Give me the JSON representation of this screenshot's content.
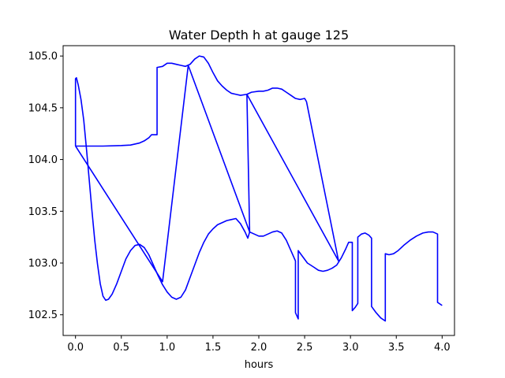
{
  "chart_data": {
    "type": "line",
    "title": "Water Depth h at gauge 125",
    "xlabel": "hours",
    "ylabel": "",
    "xlim": [
      -0.135,
      4.135
    ],
    "ylim": [
      102.3,
      105.1
    ],
    "xticks": [
      0.0,
      0.5,
      1.0,
      1.5,
      2.0,
      2.5,
      3.0,
      3.5,
      4.0
    ],
    "xtick_labels": [
      "0.0",
      "0.5",
      "1.0",
      "1.5",
      "2.0",
      "2.5",
      "3.0",
      "3.5",
      "4.0"
    ],
    "yticks": [
      102.5,
      103.0,
      103.5,
      104.0,
      104.5,
      105.0
    ],
    "ytick_labels": [
      "102.5",
      "103.0",
      "103.5",
      "104.0",
      "104.5",
      "105.0"
    ],
    "grid": false,
    "color": "#0000ff",
    "series": [
      {
        "values": [
          [
            0.0,
            104.13
          ],
          [
            0.0,
            104.78
          ],
          [
            0.01,
            104.79
          ],
          [
            0.03,
            104.72
          ],
          [
            0.06,
            104.58
          ],
          [
            0.09,
            104.38
          ],
          [
            0.12,
            104.1
          ],
          [
            0.15,
            103.8
          ],
          [
            0.18,
            103.5
          ],
          [
            0.21,
            103.22
          ],
          [
            0.24,
            102.99
          ],
          [
            0.27,
            102.8
          ],
          [
            0.3,
            102.68
          ],
          [
            0.33,
            102.64
          ],
          [
            0.36,
            102.65
          ],
          [
            0.4,
            102.7
          ],
          [
            0.45,
            102.8
          ],
          [
            0.5,
            102.92
          ],
          [
            0.55,
            103.04
          ],
          [
            0.6,
            103.12
          ],
          [
            0.65,
            103.17
          ],
          [
            0.7,
            103.18
          ],
          [
            0.75,
            103.15
          ],
          [
            0.8,
            103.08
          ],
          [
            0.85,
            102.98
          ],
          [
            0.9,
            102.88
          ],
          [
            0.95,
            102.79
          ],
          [
            1.0,
            102.72
          ],
          [
            1.05,
            102.67
          ],
          [
            1.1,
            102.65
          ],
          [
            1.15,
            102.67
          ],
          [
            1.2,
            102.74
          ],
          [
            1.25,
            102.86
          ],
          [
            1.3,
            102.98
          ],
          [
            1.35,
            103.1
          ],
          [
            1.4,
            103.2
          ],
          [
            1.45,
            103.28
          ],
          [
            1.5,
            103.33
          ],
          [
            1.55,
            103.37
          ],
          [
            1.6,
            103.39
          ],
          [
            1.65,
            103.41
          ],
          [
            1.7,
            103.42
          ],
          [
            1.75,
            103.43
          ],
          [
            1.8,
            103.38
          ],
          [
            1.85,
            103.3
          ],
          [
            1.88,
            103.24
          ],
          [
            1.9,
            103.3
          ],
          [
            1.95,
            103.28
          ],
          [
            2.0,
            103.26
          ],
          [
            2.05,
            103.26
          ],
          [
            2.1,
            103.28
          ],
          [
            2.15,
            103.3
          ],
          [
            2.2,
            103.31
          ],
          [
            2.25,
            103.29
          ],
          [
            2.3,
            103.22
          ],
          [
            2.35,
            103.12
          ],
          [
            2.4,
            103.02
          ],
          [
            2.4,
            102.52
          ],
          [
            2.43,
            102.46
          ],
          [
            2.43,
            103.12
          ],
          [
            2.48,
            103.06
          ],
          [
            2.53,
            103.0
          ],
          [
            2.6,
            102.96
          ],
          [
            2.65,
            102.93
          ],
          [
            2.7,
            102.92
          ],
          [
            2.75,
            102.93
          ],
          [
            2.8,
            102.95
          ],
          [
            2.85,
            102.98
          ],
          [
            2.9,
            103.05
          ],
          [
            2.95,
            103.14
          ],
          [
            2.98,
            103.2
          ],
          [
            3.02,
            103.2
          ],
          [
            3.02,
            102.54
          ],
          [
            3.05,
            102.57
          ],
          [
            3.08,
            102.61
          ],
          [
            3.08,
            103.25
          ],
          [
            3.12,
            103.28
          ],
          [
            3.16,
            103.29
          ],
          [
            3.2,
            103.27
          ],
          [
            3.23,
            103.24
          ],
          [
            3.23,
            102.58
          ],
          [
            3.28,
            102.52
          ],
          [
            3.33,
            102.47
          ],
          [
            3.38,
            102.44
          ],
          [
            3.38,
            103.09
          ],
          [
            3.42,
            103.08
          ],
          [
            3.47,
            103.09
          ],
          [
            3.52,
            103.12
          ],
          [
            3.58,
            103.17
          ],
          [
            3.65,
            103.22
          ],
          [
            3.72,
            103.26
          ],
          [
            3.79,
            103.29
          ],
          [
            3.85,
            103.3
          ],
          [
            3.9,
            103.3
          ],
          [
            3.95,
            103.28
          ],
          [
            3.95,
            102.62
          ],
          [
            4.0,
            102.59
          ]
        ]
      },
      {
        "values": [
          [
            0.0,
            104.13
          ],
          [
            0.3,
            104.13
          ],
          [
            0.5,
            104.135
          ],
          [
            0.6,
            104.14
          ],
          [
            0.7,
            104.16
          ],
          [
            0.75,
            104.18
          ],
          [
            0.8,
            104.21
          ],
          [
            0.83,
            104.24
          ],
          [
            0.86,
            104.24
          ],
          [
            0.89,
            104.24
          ],
          [
            0.89,
            104.89
          ],
          [
            0.95,
            104.9
          ],
          [
            1.0,
            104.93
          ],
          [
            1.05,
            104.93
          ],
          [
            1.1,
            104.92
          ],
          [
            1.15,
            104.91
          ],
          [
            1.2,
            104.9
          ],
          [
            1.25,
            104.92
          ],
          [
            1.3,
            104.97
          ],
          [
            1.35,
            105.0
          ],
          [
            1.4,
            104.99
          ],
          [
            1.45,
            104.93
          ],
          [
            1.5,
            104.84
          ],
          [
            1.55,
            104.76
          ],
          [
            1.6,
            104.71
          ],
          [
            1.65,
            104.67
          ],
          [
            1.7,
            104.64
          ],
          [
            1.75,
            104.63
          ],
          [
            1.8,
            104.62
          ],
          [
            1.87,
            104.63
          ],
          [
            1.92,
            104.65
          ],
          [
            2.0,
            104.66
          ],
          [
            2.05,
            104.66
          ],
          [
            2.1,
            104.67
          ],
          [
            2.15,
            104.69
          ],
          [
            2.2,
            104.69
          ],
          [
            2.25,
            104.68
          ],
          [
            2.3,
            104.65
          ],
          [
            2.35,
            104.62
          ],
          [
            2.4,
            104.59
          ],
          [
            2.45,
            104.58
          ],
          [
            2.5,
            104.59
          ],
          [
            2.52,
            104.56
          ]
        ]
      },
      {
        "values": [
          [
            0.0,
            104.13
          ],
          [
            0.95,
            102.82
          ],
          [
            1.23,
            104.91
          ],
          [
            1.9,
            103.3
          ],
          [
            1.87,
            104.63
          ],
          [
            2.87,
            103.02
          ],
          [
            2.52,
            104.56
          ]
        ]
      }
    ]
  }
}
